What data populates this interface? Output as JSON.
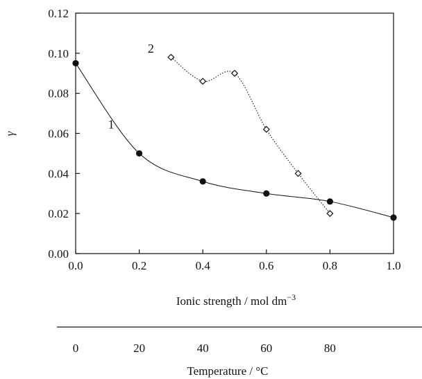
{
  "chart_data": {
    "type": "scatter",
    "xlabel_main": "Ionic strength / mol dm",
    "xlabel_main_sup": "−3",
    "xlabel_secondary": "Temperature / °C",
    "ylabel": "γ",
    "xlim": [
      0,
      1
    ],
    "ylim": [
      0,
      0.12
    ],
    "grid": false,
    "x_ticks": [
      "0.0",
      "0.2",
      "0.4",
      "0.6",
      "0.8",
      "1.0"
    ],
    "x_tick_values": [
      0,
      0.2,
      0.4,
      0.6,
      0.8,
      1.0
    ],
    "y_ticks": [
      "0.00",
      "0.02",
      "0.04",
      "0.06",
      "0.08",
      "0.10",
      "0.12"
    ],
    "y_tick_values": [
      0,
      0.02,
      0.04,
      0.06,
      0.08,
      0.1,
      0.12
    ],
    "secondary_ticks": [
      "0",
      "20",
      "40",
      "60",
      "80"
    ],
    "secondary_tick_values": [
      0,
      20,
      40,
      60,
      80
    ],
    "secondary_xlim": [
      0,
      100
    ],
    "series": [
      {
        "label": "1",
        "marker": "filled-circle",
        "line": "solid",
        "x": [
          0.0,
          0.2,
          0.4,
          0.6,
          0.8,
          1.0
        ],
        "y": [
          0.095,
          0.05,
          0.036,
          0.03,
          0.026,
          0.018
        ]
      },
      {
        "label": "2",
        "marker": "open-diamond",
        "line": "dotted",
        "x": [
          0.3,
          0.4,
          0.5,
          0.6,
          0.7,
          0.8
        ],
        "y": [
          0.098,
          0.086,
          0.09,
          0.062,
          0.04,
          0.02
        ]
      }
    ]
  }
}
